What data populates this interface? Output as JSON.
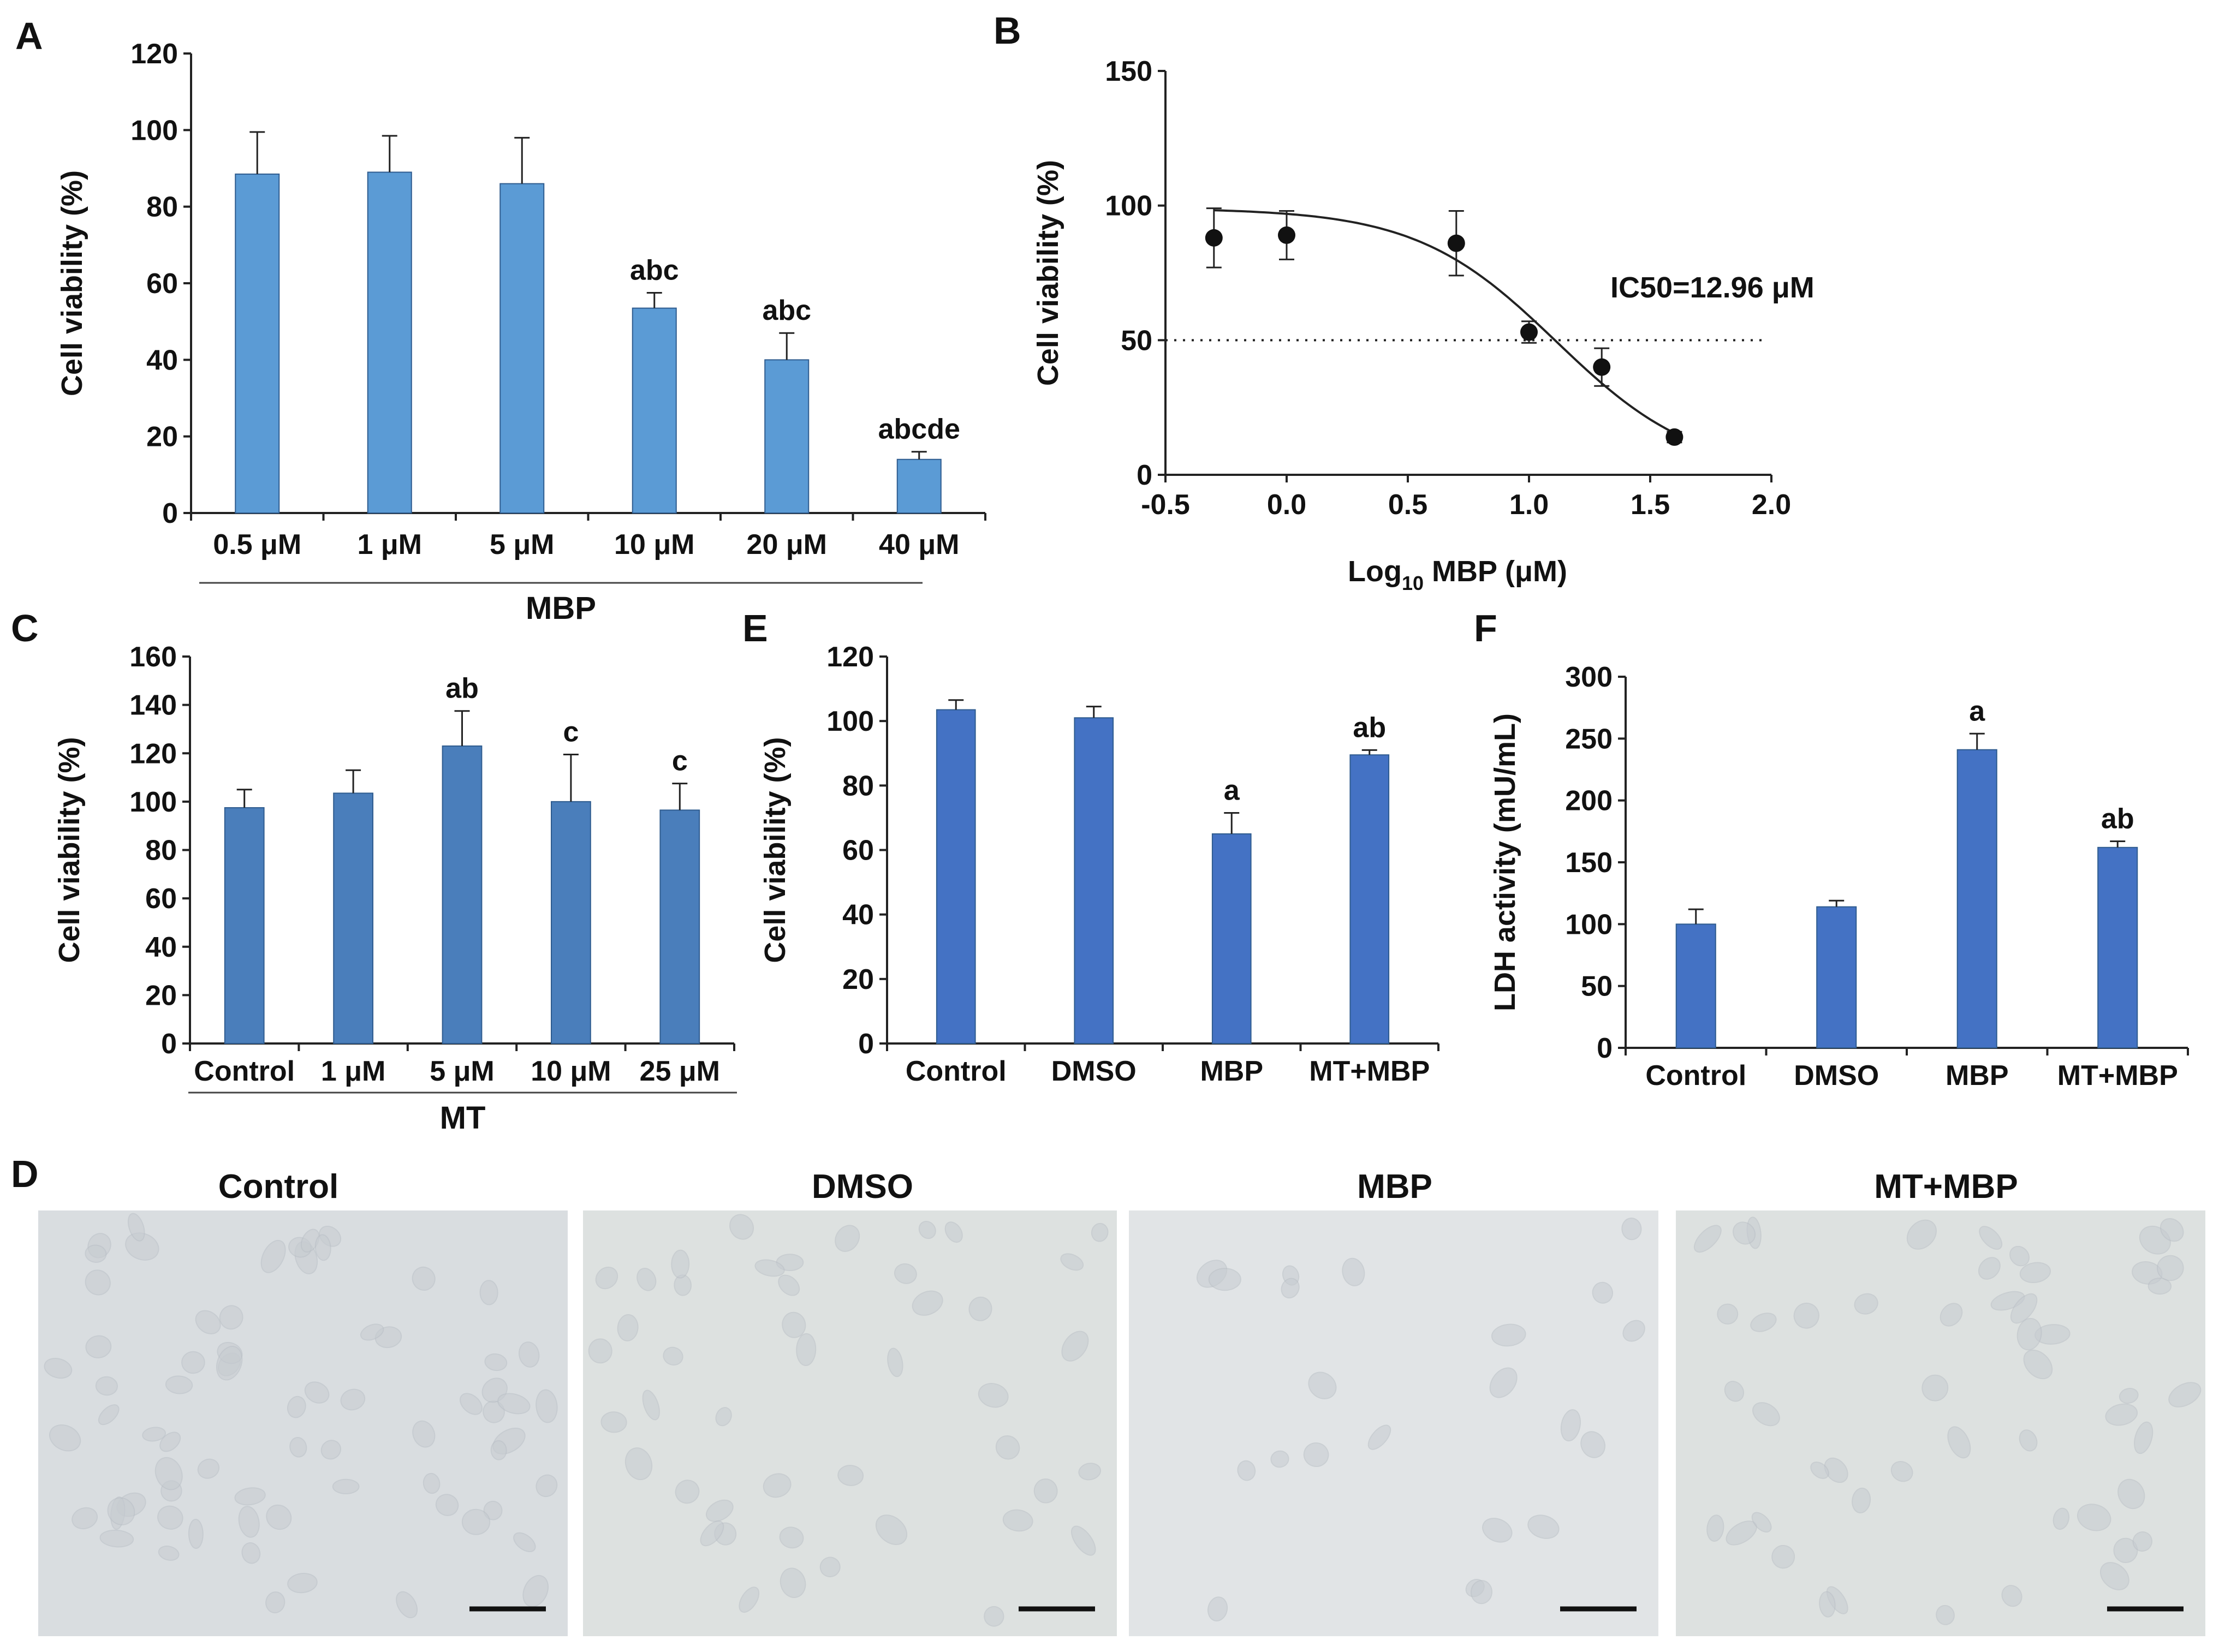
{
  "chart_data": [
    {
      "panel": "A",
      "type": "bar",
      "categories": [
        "0.5 μM",
        "1 μM",
        "5 μM",
        "10 μM",
        "20 μM",
        "40 μM"
      ],
      "values": [
        88.5,
        89,
        86,
        53.5,
        40,
        14
      ],
      "errors": [
        11,
        9.5,
        12,
        4,
        7,
        2
      ],
      "significance": [
        "",
        "",
        "",
        "abc",
        "abc",
        "abcde"
      ],
      "ylabel": "Cell viability (%)",
      "xlabel": "",
      "group_label": "MBP",
      "ylim": [
        0,
        120
      ],
      "yticks": [
        "0",
        "20",
        "40",
        "60",
        "80",
        "100",
        "120"
      ],
      "bar_color": "#5b9bd5",
      "grid": false
    },
    {
      "panel": "B",
      "type": "scatter",
      "x": [
        -0.3,
        0.0,
        0.7,
        1.0,
        1.3,
        1.6
      ],
      "y": [
        88,
        89,
        86,
        53,
        40,
        14
      ],
      "errors": [
        11,
        9,
        12,
        4,
        7,
        2
      ],
      "fit": {
        "top": 99,
        "bottom": 0,
        "log_ic50": 1.1126,
        "hill": 1.5
      },
      "threshold_line": 50,
      "annotation": "IC50=12.96 μM",
      "ylabel": "Cell viability  (%)",
      "xlabel_main": "Log",
      "xlabel_sub": "10",
      "xlabel_rest": " MBP (μM)",
      "xlim": [
        -0.5,
        2.0
      ],
      "ylim": [
        0,
        150
      ],
      "xticks": [
        "-0.5",
        "0.0",
        "0.5",
        "1.0",
        "1.5",
        "2.0"
      ],
      "yticks": [
        "0",
        "50",
        "100",
        "150"
      ],
      "grid": false
    },
    {
      "panel": "C",
      "type": "bar",
      "categories": [
        "Control",
        "1 μM",
        "5 μM",
        "10 μM",
        "25 μM"
      ],
      "values": [
        97.5,
        103.5,
        123,
        100,
        96.5
      ],
      "errors": [
        7.5,
        9.5,
        14.5,
        19.5,
        11
      ],
      "significance": [
        "",
        "",
        "ab",
        "c",
        "c"
      ],
      "ylabel": "Cell viability (%)",
      "group_label": "MT",
      "ylim": [
        0,
        160
      ],
      "yticks": [
        "0",
        "20",
        "40",
        "60",
        "80",
        "100",
        "120",
        "140",
        "160"
      ],
      "bar_color": "#4a7ebb",
      "grid": false
    },
    {
      "panel": "E",
      "type": "bar",
      "categories": [
        "Control",
        "DMSO",
        "MBP",
        "MT+MBP"
      ],
      "values": [
        103.5,
        101,
        65,
        89.5
      ],
      "errors": [
        3,
        3.5,
        6.5,
        1.5
      ],
      "significance": [
        "",
        "",
        "a",
        "ab"
      ],
      "ylabel": "Cell viability (%)",
      "ylim": [
        0,
        120
      ],
      "yticks": [
        "0",
        "20",
        "40",
        "60",
        "80",
        "100",
        "120"
      ],
      "bar_color": "#4472c4",
      "grid": false
    },
    {
      "panel": "F",
      "type": "bar",
      "categories": [
        "Control",
        "DMSO",
        "MBP",
        "MT+MBP"
      ],
      "values": [
        100,
        114,
        241,
        162
      ],
      "errors": [
        12,
        5,
        13,
        5
      ],
      "significance": [
        "",
        "",
        "a",
        "ab"
      ],
      "ylabel": "LDH activity (mU/mL)",
      "ylim": [
        0,
        300
      ],
      "yticks": [
        "0",
        "50",
        "100",
        "150",
        "200",
        "250",
        "300"
      ],
      "bar_color": "#4472c4",
      "grid": false
    }
  ],
  "panel_d": {
    "letter": "D",
    "titles": [
      "Control",
      "DMSO",
      "MBP",
      "MT+MBP"
    ],
    "background_colors": [
      "#d9dde0",
      "#dde1e0",
      "#e1e4e6",
      "#dde1e0"
    ],
    "cell_color": "#c7ccd1"
  },
  "panel_letters": [
    "A",
    "B",
    "C",
    "E",
    "F"
  ]
}
